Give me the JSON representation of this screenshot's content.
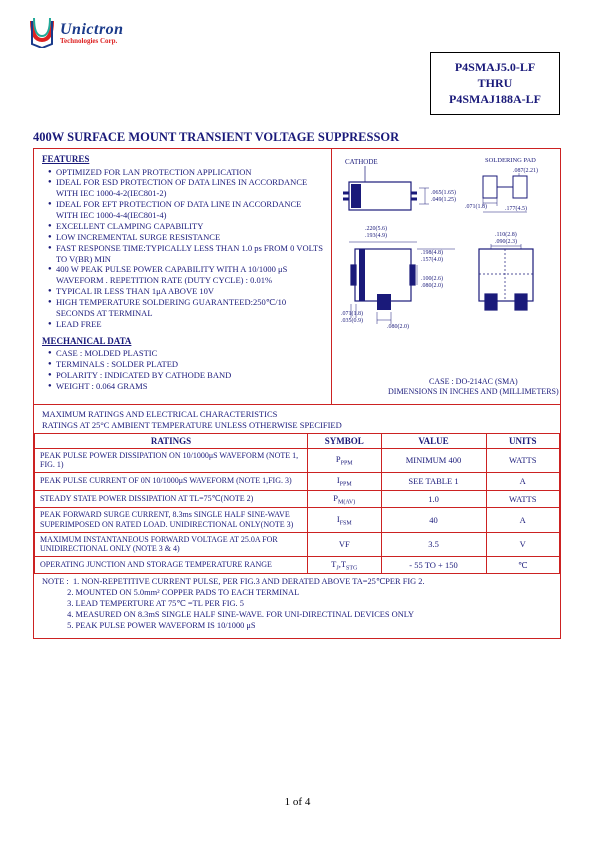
{
  "logo": {
    "brand": "Unictron",
    "tagline": "Technologies Corp.",
    "colors": {
      "blue": "#1a3a8a",
      "red": "#d22",
      "green": "#2a9"
    }
  },
  "partbox": {
    "line1": "P4SMAJ5.0-LF",
    "line2": "THRU",
    "line3": "P4SMAJ188A-LF"
  },
  "main_title": "400W SURFACE MOUNT TRANSIENT VOLTAGE SUPPRESSOR",
  "features": {
    "heading": "FEATURES",
    "items": [
      "OPTIMIZED FOR LAN PROTECTION APPLICATION",
      "IDEAL FOR ESD PROTECTION OF DATA LINES IN ACCORDANCE WITH IEC 1000-4-2(IEC801-2)",
      "IDEAL FOR EFT PROTECTION OF DATA LINE IN ACCORDANCE WITH IEC 1000-4-4(IEC801-4)",
      "EXCELLENT CLAMPING CAPABILITY",
      "LOW INCREMENTAL SURGE RESISTANCE",
      "FAST RESPONSE TIME:TYPICALLY LESS THAN 1.0 ps FROM 0 VOLTS TO V(BR) MIN",
      "400 W PEAK PULSE POWER CAPABILITY WITH A 10/1000 μS WAVEFORM . REPETITION RATE (DUTY CYCLE) : 0.01%",
      "TYPICAL IR LESS THAN 1μA ABOVE 10V",
      "HIGH TEMPERATURE SOLDERING GUARANTEED:250℃/10 SECONDS AT TERMINAL",
      "LEAD FREE"
    ]
  },
  "mechanical": {
    "heading": "MECHANICAL DATA",
    "items": [
      "CASE : MOLDED PLASTIC",
      "TERMINALS : SOLDER PLATED",
      "POLARITY : INDICATED BY CATHODE BAND",
      "WEIGHT : 0.064 GRAMS"
    ]
  },
  "diagram": {
    "cathode_label": "CATHODE",
    "soldering_label": "SOLDERING PAD",
    "case_line1": "CASE : DO-214AC (SMA)",
    "case_line2": "DIMENSIONS IN INCHES AND (MILLIMETERS)",
    "dims": {
      "a": ".065(1.65)\n.049(1.25)",
      "b": ".087(2.21)",
      "c": ".071(1.8)",
      "d": ".177(4.5)",
      "e": ".220(5.6)\n.193(4.9)",
      "f": ".198(4.8)\n.157(4.0)",
      "g": ".110(2.8)\n.090(2.3)",
      "h": ".100(2.6)\n.080(2.0)",
      "i": ".071(1.8)\n.035(0.9)",
      "j": ".080(2.0)"
    }
  },
  "ratings_block": {
    "line1": "MAXIMUM RATINGS AND ELECTRICAL CHARACTERISTICS",
    "line2": "RATINGS AT 25°C AMBIENT TEMPERATURE UNLESS OTHERWISE SPECIFIED"
  },
  "ratings_table": {
    "headers": {
      "c1": "RATINGS",
      "c2": "SYMBOL",
      "c3": "VALUE",
      "c4": "UNITS"
    },
    "rows": [
      {
        "desc": "PEAK PULSE POWER DISSIPATION ON 10/1000μS WAVEFORM (NOTE 1, FIG. 1)",
        "sym": "PPPM",
        "val": "MINIMUM 400",
        "unit": "WATTS"
      },
      {
        "desc": "PEAK PULSE CURRENT OF 0N 10/1000μS WAVEFORM (NOTE 1,FIG. 3)",
        "sym": "IPPM",
        "val": "SEE TABLE 1",
        "unit": "A"
      },
      {
        "desc": "STEADY STATE POWER DISSIPATION AT TL=75℃(NOTE 2)",
        "sym": "PM(AV)",
        "val": "1.0",
        "unit": "WATTS"
      },
      {
        "desc": "PEAK FORWARD SURGE CURRENT, 8.3ms SINGLE HALF SINE-WAVE SUPERIMPOSED ON RATED LOAD. UNIDIRECTIONAL ONLY(NOTE 3)",
        "sym": "IFSM",
        "val": "40",
        "unit": "A"
      },
      {
        "desc": "MAXIMUM INSTANTANEOUS FORWARD VOLTAGE AT 25.0A FOR UNIDIRECTIONAL ONLY (NOTE 3 & 4)",
        "sym": "VF",
        "val": "3.5",
        "unit": "V"
      },
      {
        "desc": "OPERATING JUNCTION AND STORAGE TEMPERATURE RANGE",
        "sym": "TJ,TSTG",
        "val": "- 55 TO + 150",
        "unit": "℃"
      }
    ]
  },
  "notes": {
    "label": "NOTE :",
    "items": [
      "1. NON-REPETITIVE CURRENT PULSE, PER FIG.3 AND DERATED ABOVE TA=25℃PER FIG 2.",
      "2. MOUNTED ON 5.0mm² COPPER PADS TO EACH TERMINAL",
      "3. LEAD TEMPERTURE AT 75℃ =TL PER FIG. 5",
      "4. MEASURED ON 8.3mS SINGLE HALF SINE-WAVE. FOR UNI-DIRECTINAL DEVICES ONLY",
      "5. PEAK PULSE POWER WAVEFORM IS 10/1000 μS"
    ]
  },
  "pagenum": "1 of 4",
  "style": {
    "frame_color": "#c22",
    "text_color": "#1a1a7a",
    "page_bg": "#ffffff"
  }
}
